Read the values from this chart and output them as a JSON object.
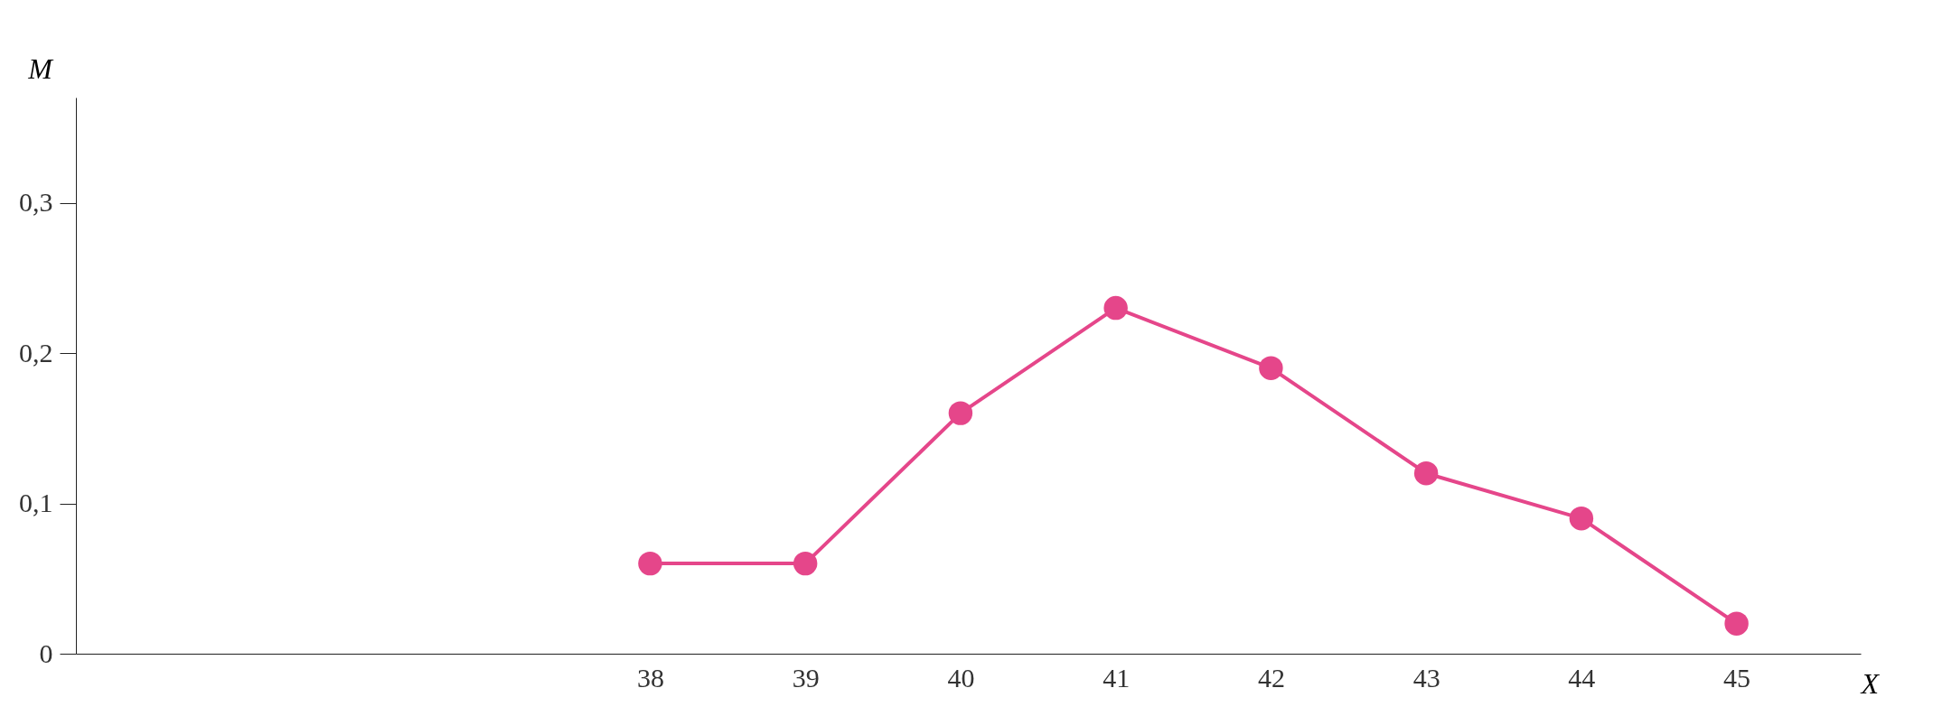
{
  "chart_data": {
    "type": "line",
    "xlabel": "X",
    "ylabel": "M",
    "x": [
      38,
      39,
      40,
      41,
      42,
      43,
      44,
      45
    ],
    "series": [
      {
        "color": "#e5468a",
        "values": [
          0.06,
          0.06,
          0.16,
          0.23,
          0.19,
          0.12,
          0.09,
          0.02
        ]
      }
    ],
    "xlim": [
      34.3,
      45.8
    ],
    "xticks": [
      38,
      39,
      40,
      41,
      42,
      43,
      44,
      45
    ],
    "ylim": [
      0,
      0.37
    ],
    "yticks": [
      0,
      {
        "value": 0.1,
        "label": "0,1"
      },
      {
        "value": 0.2,
        "label": "0,2"
      },
      {
        "value": 0.3,
        "label": "0,3"
      }
    ],
    "marker": "circle",
    "line_style": "solid",
    "grid": false
  }
}
